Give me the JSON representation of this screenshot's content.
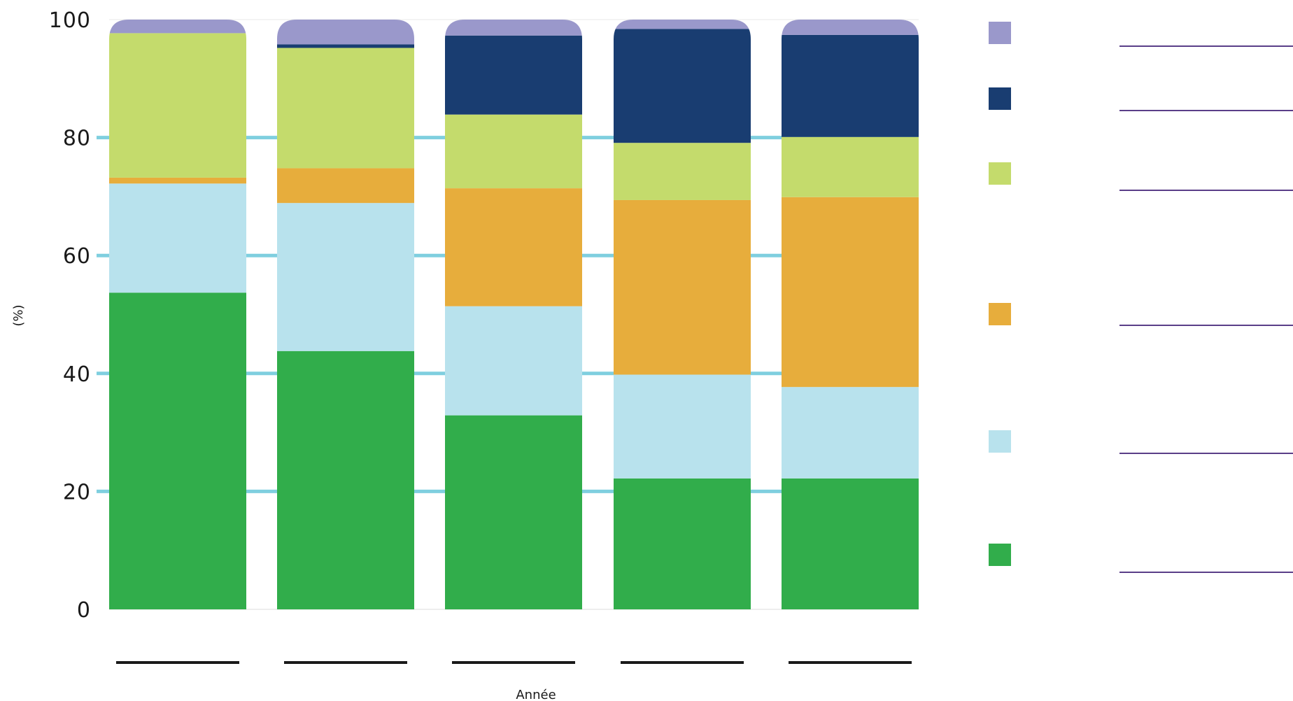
{
  "chart_data": {
    "type": "bar",
    "stacked": true,
    "orientation": "vertical",
    "categories": [
      "",
      "",
      "",
      "",
      ""
    ],
    "xlabel": "Année",
    "ylabel": "(%)",
    "ylim": [
      0,
      100
    ],
    "yticks": [
      0,
      20,
      40,
      60,
      80,
      100
    ],
    "grid": "horizontal",
    "legend_position": "right",
    "series": [
      {
        "color": "#31ad4b",
        "values": [
          53.7,
          43.8,
          32.9,
          22.2,
          22.2
        ]
      },
      {
        "color": "#b8e2ed",
        "values": [
          18.5,
          25.1,
          18.5,
          17.6,
          15.5
        ]
      },
      {
        "color": "#e7ad3c",
        "values": [
          1.0,
          5.9,
          20.0,
          29.6,
          32.2
        ]
      },
      {
        "color": "#c4db6c",
        "values": [
          24.5,
          20.4,
          12.5,
          9.7,
          10.2
        ]
      },
      {
        "color": "#193d71",
        "values": [
          0,
          0.6,
          13.4,
          19.3,
          17.3
        ]
      },
      {
        "color": "#9a98cb",
        "values": [
          2.3,
          4.2,
          2.7,
          1.6,
          2.6
        ]
      }
    ]
  },
  "colors": {
    "gridline": "#7fcfdf",
    "legend_line": "#5a3e88",
    "category_line": "#1a1a1a"
  }
}
